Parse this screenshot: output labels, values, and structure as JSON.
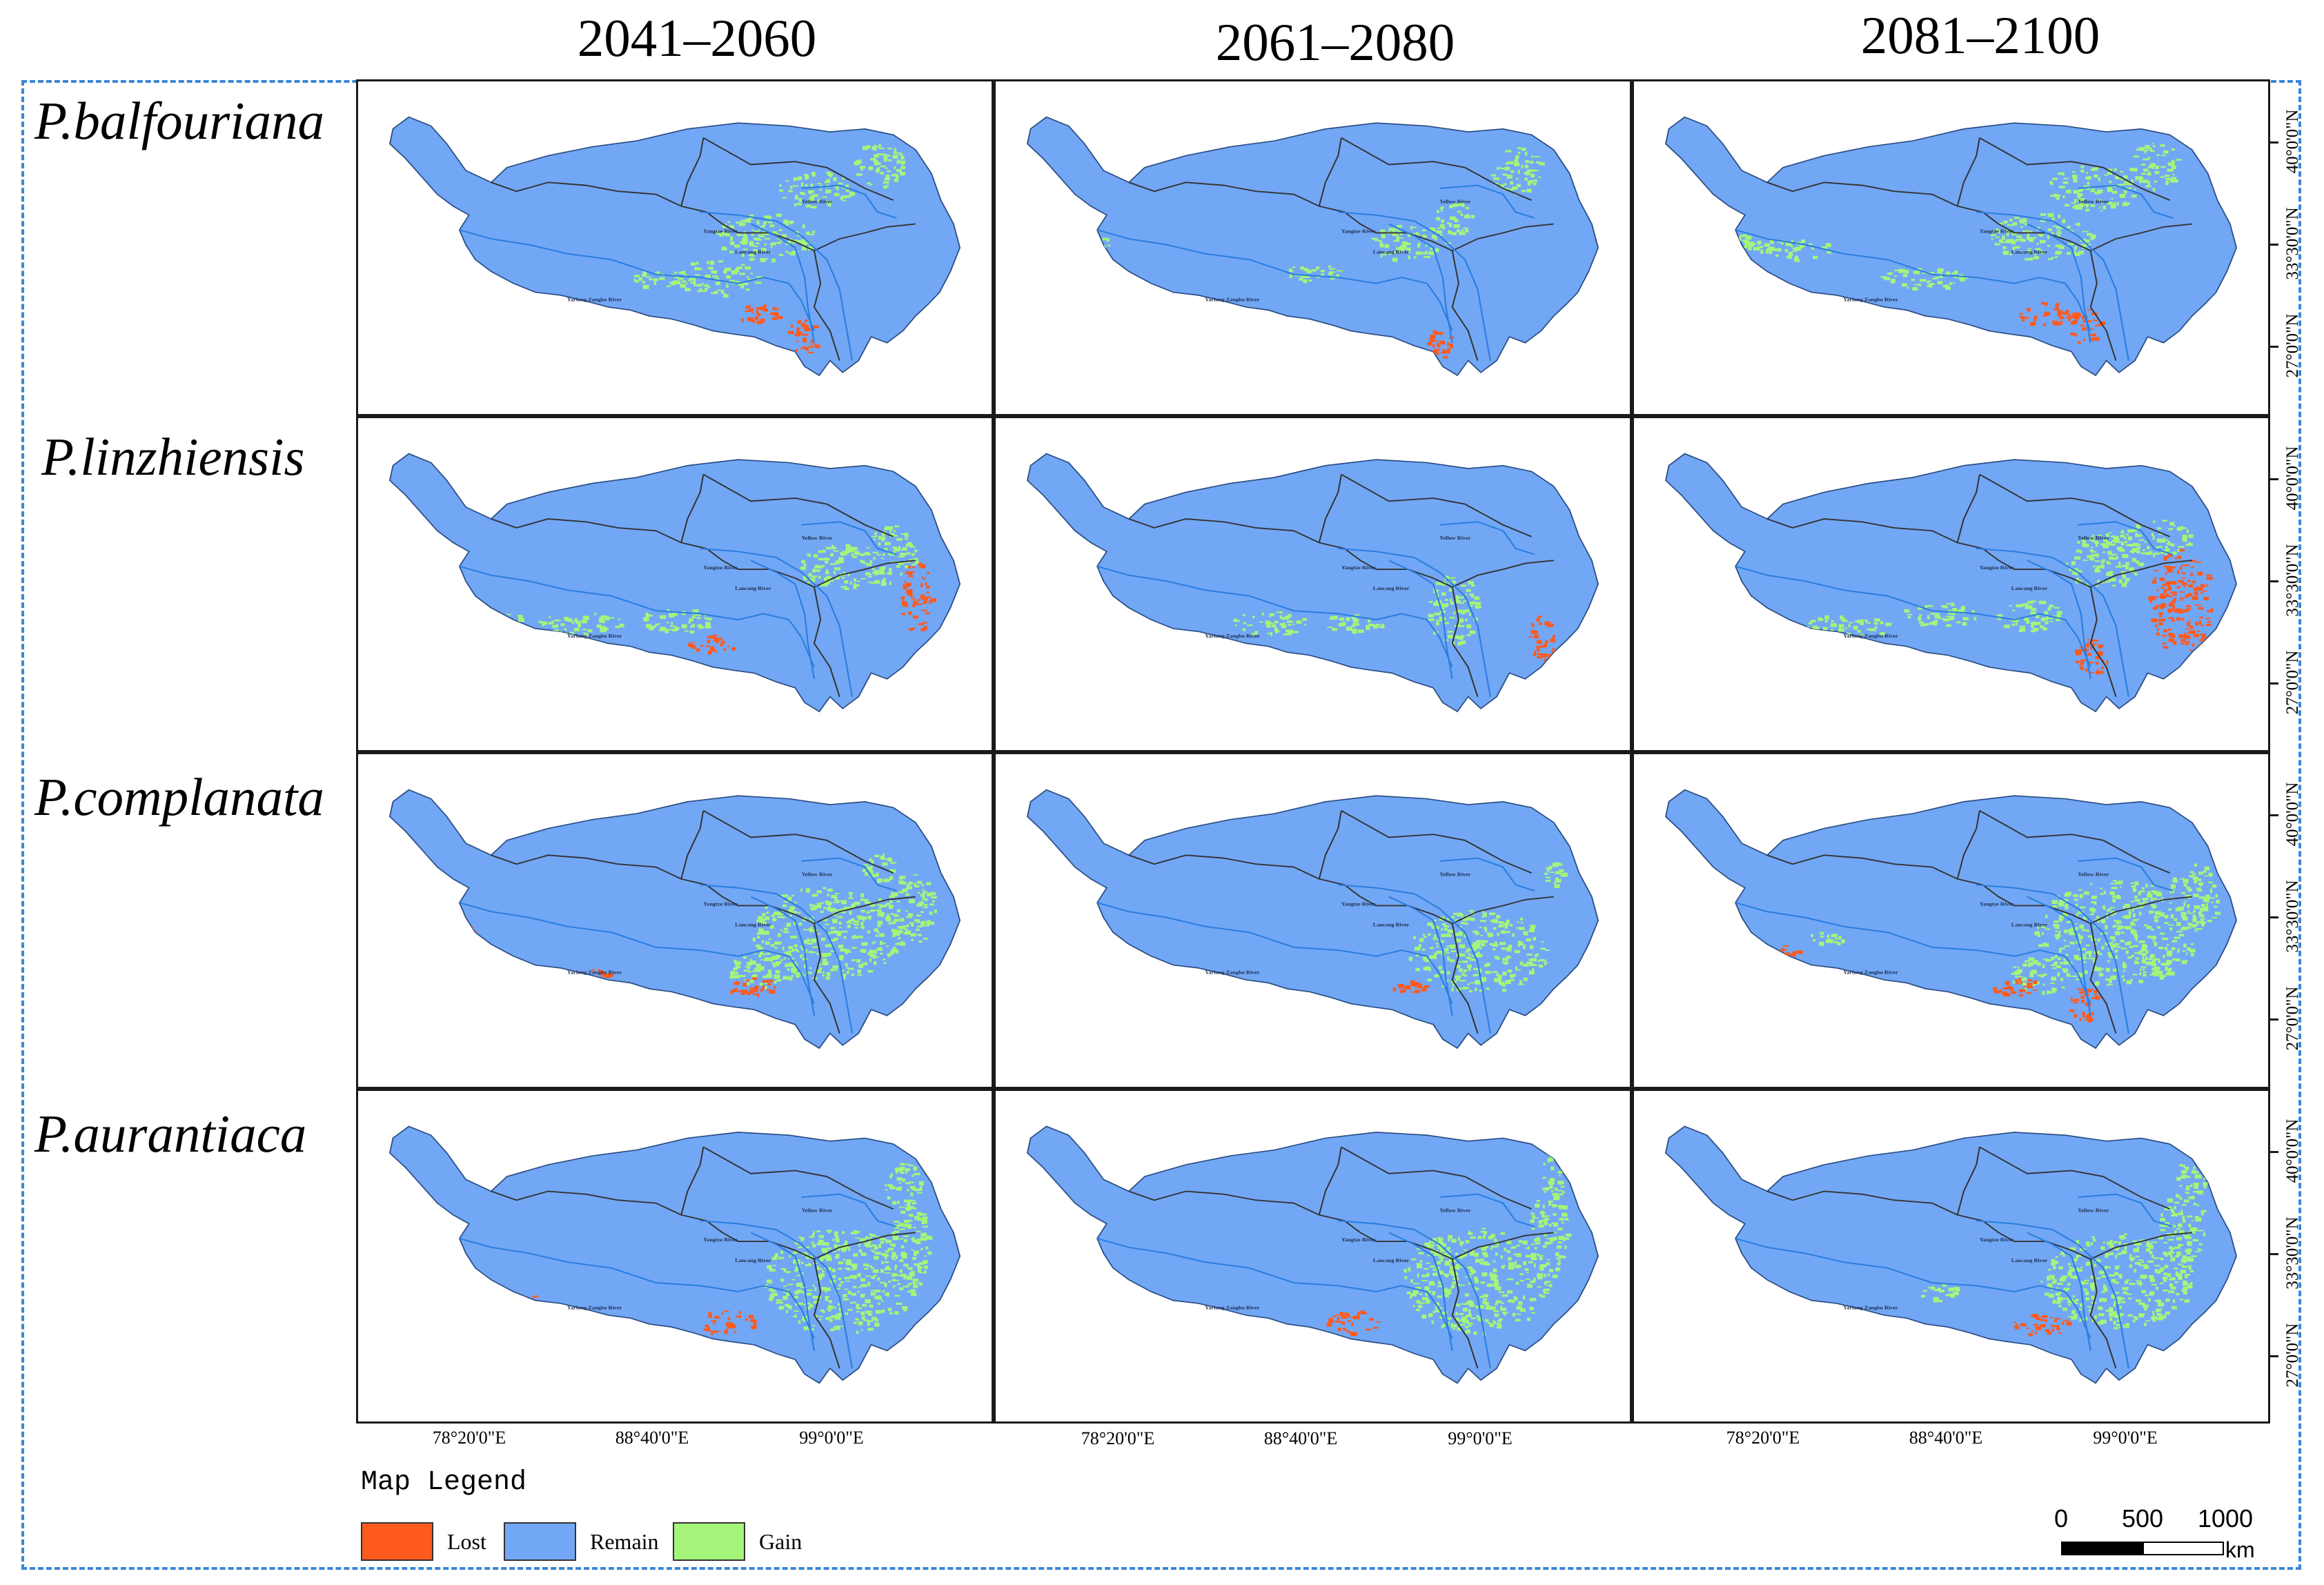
{
  "periods": [
    "2041–2060",
    "2061–2080",
    "2081–2100"
  ],
  "species": [
    "P.balfouriana",
    "P.linzhiensis",
    "P.complanata",
    "P.aurantiaca"
  ],
  "latitude_labels": [
    "40°0'0\"N",
    "33°30'0\"N",
    "27°0'0\"N"
  ],
  "longitude_labels": [
    "78°20'0\"E",
    "88°40'0\"E",
    "99°0'0\"E"
  ],
  "river_labels": [
    "Yellow River",
    "Yangtze River",
    "Lancang River",
    "Yarlung Zangbo River"
  ],
  "legend": {
    "title": "Map Legend",
    "items": [
      {
        "label": "Lost",
        "color": "#ff5a1e"
      },
      {
        "label": "Remain",
        "color": "#72a7f5"
      },
      {
        "label": "Gain",
        "color": "#a4f57a"
      }
    ]
  },
  "scale_bar": {
    "ticks": [
      "0",
      "500",
      "1000"
    ],
    "unit": "km"
  },
  "colors": {
    "region_fill": "#72a7f5",
    "border_line": "#333333",
    "river_line": "#2b7ee0",
    "frame_dash": "#3b86d6"
  }
}
